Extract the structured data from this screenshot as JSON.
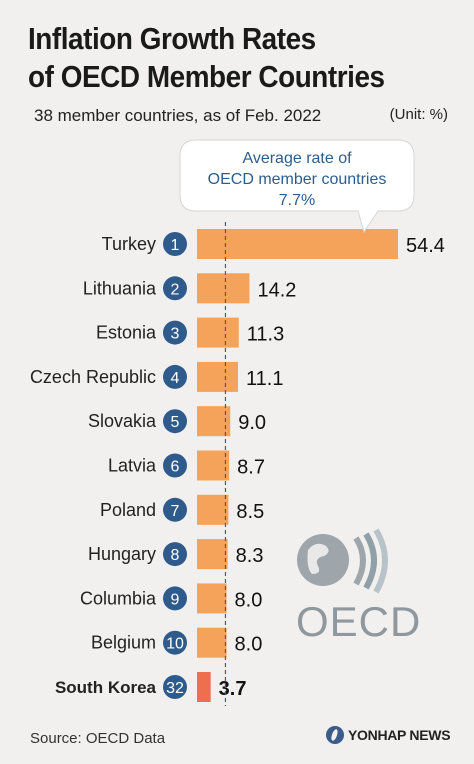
{
  "title_line1": "Inflation Growth Rates",
  "title_line2": "of OECD Member Countries",
  "subtitle": "38 member countries, as of Feb. 2022",
  "unit": "(Unit: %)",
  "source": "Source: OECD Data",
  "credit": "YONHAP NEWS",
  "oecd_logo_text": "OECD",
  "callout": {
    "line1": "Average rate of",
    "line2": "OECD member countries",
    "line3": "7.7%"
  },
  "colors": {
    "bar": "#f5a35a",
    "bar_highlight": "#ee6f4d",
    "rank_badge": "#2e5a8c",
    "avg_line": "#3a5f8a",
    "callout_text": "#2c5d8f"
  },
  "chart_data": {
    "type": "bar",
    "orientation": "horizontal",
    "categories": [
      "Turkey",
      "Lithuania",
      "Estonia",
      "Czech Republic",
      "Slovakia",
      "Latvia",
      "Poland",
      "Hungary",
      "Columbia",
      "Belgium",
      "South Korea"
    ],
    "ranks": [
      "1",
      "2",
      "3",
      "4",
      "5",
      "6",
      "7",
      "8",
      "9",
      "10",
      "32"
    ],
    "values": [
      54.4,
      14.2,
      11.3,
      11.1,
      9.0,
      8.7,
      8.5,
      8.3,
      8.0,
      8.0,
      3.7
    ],
    "value_labels": [
      "54.4",
      "14.2",
      "11.3",
      "11.1",
      "9.0",
      "8.7",
      "8.5",
      "8.3",
      "8.0",
      "8.0",
      "3.7"
    ],
    "highlight": "South Korea",
    "average": 7.7,
    "xlim": [
      0,
      54.4
    ],
    "grid": false,
    "legend": "none"
  }
}
